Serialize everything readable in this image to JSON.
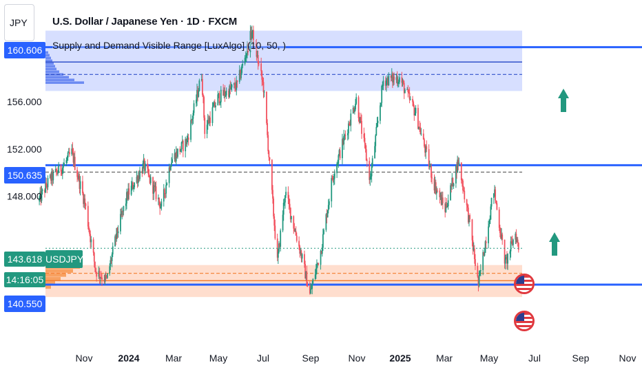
{
  "header": {
    "title": "U.S. Dollar / Japanese Yen · 1D · FXCM",
    "indicator": "Supply and Demand Visible Range [LuxAlgo] (10, 50, )"
  },
  "currency_label": "JPY",
  "price_tags": {
    "top": "160.606",
    "mid": "150.635",
    "current": "143.618",
    "countdown": "14:16:05",
    "bottom": "140.550",
    "symbol": "USDJPY"
  },
  "colors": {
    "up": "#22987f",
    "down": "#f2525f",
    "level_line": "#2962ff",
    "supply_zone": "#c9d4ff",
    "demand_zone": "#ffd6c2",
    "demand_line": "#f57c2c",
    "tag_blue": "#2962ff",
    "tag_green": "#22987f",
    "flag_red": "#e0383e"
  },
  "icons": [
    "arrow-up-icon",
    "arrow-up-icon",
    "us-flag-icon",
    "us-flag-icon"
  ],
  "chart_data": {
    "type": "candlestick",
    "title": "U.S. Dollar / Japanese Yen · 1D · FXCM",
    "ylim": [
      138.0,
      161.8
    ],
    "y_ticks": [
      "156.000",
      "152.000",
      "148.000"
    ],
    "x_ticks": [
      "Nov",
      "2024",
      "Mar",
      "May",
      "Jul",
      "Sep",
      "Nov",
      "2025",
      "Mar",
      "May",
      "Jul",
      "Sep",
      "Nov"
    ],
    "bold_ticks": [
      "2024",
      "2025"
    ],
    "path": [
      [
        "2023-10-01",
        147.6
      ],
      [
        "2023-10-15",
        149.4
      ],
      [
        "2023-11-01",
        150.5
      ],
      [
        "2023-11-13",
        151.7
      ],
      [
        "2023-11-30",
        147.4
      ],
      [
        "2023-12-14",
        141.7
      ],
      [
        "2023-12-28",
        140.9
      ],
      [
        "2024-01-10",
        144.8
      ],
      [
        "2024-01-24",
        148.1
      ],
      [
        "2024-02-14",
        150.6
      ],
      [
        "2024-03-08",
        147.1
      ],
      [
        "2024-03-20",
        151.0
      ],
      [
        "2024-04-10",
        152.7
      ],
      [
        "2024-04-29",
        158.3
      ],
      [
        "2024-05-03",
        153.6
      ],
      [
        "2024-05-20",
        156.3
      ],
      [
        "2024-06-14",
        157.4
      ],
      [
        "2024-07-03",
        161.9
      ],
      [
        "2024-07-18",
        157.2
      ],
      [
        "2024-08-05",
        142.4
      ],
      [
        "2024-08-15",
        148.4
      ],
      [
        "2024-09-05",
        143.0
      ],
      [
        "2024-09-16",
        139.7
      ],
      [
        "2024-10-01",
        143.7
      ],
      [
        "2024-10-15",
        149.6
      ],
      [
        "2024-11-15",
        156.2
      ],
      [
        "2024-12-03",
        149.4
      ],
      [
        "2024-12-20",
        157.8
      ],
      [
        "2025-01-10",
        158.0
      ],
      [
        "2025-01-31",
        155.0
      ],
      [
        "2025-02-24",
        149.0
      ],
      [
        "2025-03-10",
        146.9
      ],
      [
        "2025-03-27",
        151.0
      ],
      [
        "2025-04-10",
        146.0
      ],
      [
        "2025-04-22",
        140.5
      ],
      [
        "2025-05-12",
        148.6
      ],
      [
        "2025-05-27",
        142.3
      ],
      [
        "2025-06-09",
        144.9
      ],
      [
        "2025-06-13",
        143.6
      ]
    ],
    "last_close": 143.618,
    "levels": {
      "supply_zone": [
        156.9,
        162.0
      ],
      "supply_line": 160.606,
      "supply_poc": 159.35,
      "supply_avg": 158.3,
      "equilibrium_line": 150.635,
      "equilibrium_dashed": 150.05,
      "demand_zone": [
        139.5,
        142.2
      ],
      "demand_dashed": 141.5,
      "demand_poc": 140.88,
      "demand_line": 140.55
    },
    "legend": "none",
    "grid": false
  }
}
